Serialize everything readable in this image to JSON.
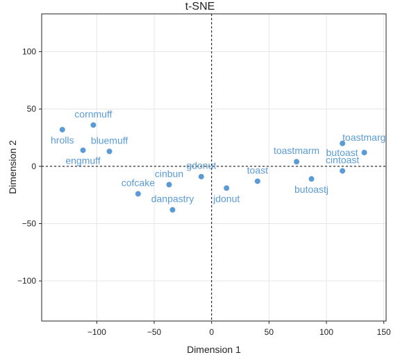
{
  "chart_data": {
    "type": "scatter",
    "title": "t-SNE",
    "xlabel": "Dimension 1",
    "ylabel": "Dimension 2",
    "xlim": [
      -148,
      152
    ],
    "ylim": [
      -135,
      133
    ],
    "xticks": [
      -100,
      -50,
      0,
      50,
      100,
      150
    ],
    "yticks": [
      100,
      50,
      0,
      -50,
      -100
    ],
    "xtick_labels": [
      "−100",
      "−50",
      "0",
      "50",
      "100",
      "150"
    ],
    "ytick_labels": [
      "100",
      "50",
      "0",
      "−50",
      "−100"
    ],
    "grid": true,
    "reference_lines": {
      "x": 0,
      "y": 0,
      "style": "dashed"
    },
    "point_color": "#5b9bd5",
    "points": [
      {
        "label": "hrolls",
        "x": -130,
        "y": 32,
        "label_pos": "below"
      },
      {
        "label": "cornmuff",
        "x": -103,
        "y": 36,
        "label_pos": "above"
      },
      {
        "label": "engmuff",
        "x": -112,
        "y": 14,
        "label_pos": "below"
      },
      {
        "label": "bluemuff",
        "x": -89,
        "y": 13,
        "label_pos": "above"
      },
      {
        "label": "cofcake",
        "x": -64,
        "y": -24,
        "label_pos": "above"
      },
      {
        "label": "cinbun",
        "x": -37,
        "y": -16,
        "label_pos": "above"
      },
      {
        "label": "danpastry",
        "x": -34,
        "y": -38,
        "label_pos": "above"
      },
      {
        "label": "gdonut",
        "x": -9,
        "y": -9,
        "label_pos": "above"
      },
      {
        "label": "jdonut",
        "x": 13,
        "y": -19,
        "label_pos": "below"
      },
      {
        "label": "toast",
        "x": 40,
        "y": -13,
        "label_pos": "above"
      },
      {
        "label": "toastmarm",
        "x": 74,
        "y": 4,
        "label_pos": "above"
      },
      {
        "label": "butoastj",
        "x": 87,
        "y": -11,
        "label_pos": "below"
      },
      {
        "label": "toastmarg",
        "x": 114,
        "y": 20,
        "label_pos": "above-right"
      },
      {
        "label": "butoast",
        "x": 133,
        "y": 12,
        "label_pos": "left"
      },
      {
        "label": "cintoast",
        "x": 114,
        "y": -4,
        "label_pos": "above"
      }
    ]
  }
}
